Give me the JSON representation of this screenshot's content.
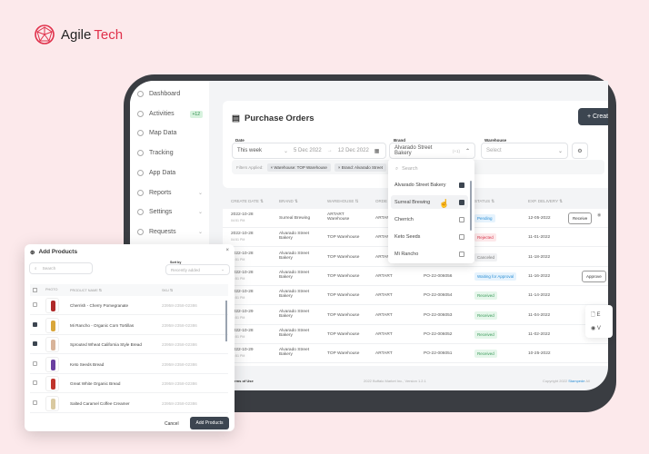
{
  "brand": {
    "name_1": "Agile",
    "name_2": "Tech",
    "accent": "#e0304a"
  },
  "sidebar": {
    "items": [
      {
        "label": "Dashboard",
        "icon": "grid-icon"
      },
      {
        "label": "Activities",
        "icon": "info-icon",
        "badge": "+12"
      },
      {
        "label": "Map Data",
        "icon": "map-icon"
      },
      {
        "label": "Tracking",
        "icon": "tracking-icon"
      },
      {
        "label": "App Data",
        "icon": "file-icon"
      },
      {
        "label": "Reports",
        "icon": "chart-icon",
        "chevron": true
      },
      {
        "label": "Settings",
        "icon": "gear-icon",
        "chevron": true
      },
      {
        "label": "Requests",
        "icon": "clipboard-icon",
        "chevron": true
      }
    ]
  },
  "page": {
    "title": "Purchase Orders",
    "create_label": "+ Create"
  },
  "filters": {
    "date_label": "Date",
    "date_value": "This week",
    "date_from": "5 Dec 2022",
    "date_to": "12 Dec 2022",
    "brand_label": "Brand",
    "brand_value": "Alvarado Street Bakery",
    "brand_extra": "(+1)",
    "warehouse_label": "Warehouse",
    "warehouse_placeholder": "Select",
    "applied_label": "Filters Applied:",
    "chips": [
      "× Warehouse: TOP Warehouse",
      "× Brand: Alvarado Street"
    ]
  },
  "brand_dropdown": {
    "search_placeholder": "Search",
    "options": [
      {
        "label": "Alvarado Street Bakery",
        "checked": true
      },
      {
        "label": "Surreal Brewing",
        "checked": true
      },
      {
        "label": "Cherrich",
        "checked": false
      },
      {
        "label": "Keto Seeds",
        "checked": false
      },
      {
        "label": "Mi Rancho",
        "checked": false
      }
    ]
  },
  "table": {
    "headers": [
      "CREATE DATE ⇅",
      "BRAND ⇅",
      "WAREHOUSE ⇅",
      "ORDE",
      "",
      "STATUS ⇅",
      "EXP. DELIVERY ⇅"
    ],
    "rows": [
      {
        "date": "2022-10-28",
        "time": "04:51 PM",
        "brand": "Surreal Brewing",
        "warehouse": "ARTART Warehouse",
        "order": "ARTART",
        "po": "",
        "status": "Pending",
        "delivery": "12-05-2022",
        "action": "Receive"
      },
      {
        "date": "2022-10-28",
        "time": "04:51 PM",
        "brand": "Alvarado Street Bakery",
        "warehouse": "TOP Warehouse",
        "order": "ARTART",
        "po": "",
        "status": "Rejected",
        "delivery": "11-01-2022",
        "action": ""
      },
      {
        "date": "2022-10-28",
        "time": "04:51 PM",
        "brand": "Alvarado Street Bakery",
        "warehouse": "TOP Warehouse",
        "order": "ARTART",
        "po": "",
        "status": "Canceled",
        "delivery": "11-18-2022",
        "action": ""
      },
      {
        "date": "2022-10-28",
        "time": "04:51 PM",
        "brand": "Alvarado Street Bakery",
        "warehouse": "TOP Warehouse",
        "order": "ARTART",
        "po": "PO-22-006056",
        "status": "Waiting for Approval",
        "delivery": "11-16-2022",
        "action": "Approve"
      },
      {
        "date": "2022-10-28",
        "time": "04:51 PM",
        "brand": "Alvarado Street Bakery",
        "warehouse": "TOP Warehouse",
        "order": "ARTART",
        "po": "PO-22-006054",
        "status": "Received",
        "delivery": "11-14-2022",
        "action": ""
      },
      {
        "date": "2022-10-29",
        "time": "04:51 PM",
        "brand": "Alvarado Street Bakery",
        "warehouse": "TOP Warehouse",
        "order": "ARTART",
        "po": "PO-22-006053",
        "status": "Received",
        "delivery": "11-04-2022",
        "action": ""
      },
      {
        "date": "2022-10-28",
        "time": "04:51 PM",
        "brand": "Alvarado Street Bakery",
        "warehouse": "TOP Warehouse",
        "order": "ARTART",
        "po": "PO-22-006052",
        "status": "Received",
        "delivery": "11-02-2022",
        "action": ""
      },
      {
        "date": "2022-10-29",
        "time": "04:51 PM",
        "brand": "Alvarado Street Bakery",
        "warehouse": "TOP Warehouse",
        "order": "ARTART",
        "po": "PO-22-006051",
        "status": "Received",
        "delivery": "10-25-2022",
        "action": ""
      }
    ]
  },
  "status_colors": {
    "Pending": [
      "#e6f3fd",
      "#2b8fd6"
    ],
    "Rejected": [
      "#fde8ea",
      "#d6364b"
    ],
    "Canceled": [
      "#f0f1f3",
      "#777777"
    ],
    "Waiting for Approval": [
      "#e6f3fd",
      "#2b8fd6"
    ],
    "Received": [
      "#e5f6ea",
      "#3a9a5a"
    ]
  },
  "row_menu": {
    "items": [
      "E",
      "V"
    ]
  },
  "footer": {
    "links": "acy Policy   Terms of Use",
    "center": "2022 Buffalo Market Inc., Version 1.2.1",
    "right_prefix": "Copyright 2022 ",
    "right_link": "Stampede",
    "right_suffix": " All"
  },
  "modal": {
    "title": "Add Products",
    "search_placeholder": "Search",
    "sort_label": "Sort by",
    "sort_value": "Recently added",
    "headers": [
      "PHOTO",
      "PRODUCT NAME ⇅",
      "SKU ⇅"
    ],
    "products": [
      {
        "name": "Cherrish - Cherry Pomegranate",
        "sku": "23958-2358-02386",
        "checked": false,
        "color": "#b02a2a"
      },
      {
        "name": "Mi Rancho - Organic Corn Tortillas",
        "sku": "23958-2358-02386",
        "checked": true,
        "color": "#d9a63a"
      },
      {
        "name": "Sprouted Wheat California Style Bread",
        "sku": "23958-2358-02386",
        "checked": true,
        "color": "#d8b49a"
      },
      {
        "name": "Keto Seeds Bread",
        "sku": "23958-2358-02386",
        "checked": false,
        "color": "#6a3fa0"
      },
      {
        "name": "Great White Organic Bread",
        "sku": "23958-2358-02386",
        "checked": false,
        "color": "#c0342c"
      },
      {
        "name": "Salted Caramel Coffee Creamer",
        "sku": "23958-2358-02386",
        "checked": false,
        "color": "#d9c9a0"
      }
    ],
    "cancel_label": "Cancel",
    "add_label": "Add Products"
  }
}
